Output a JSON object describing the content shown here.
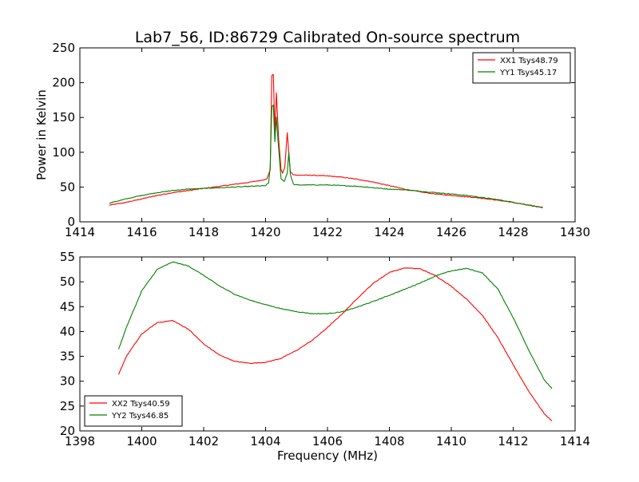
{
  "figure_title": "Lab7_56, ID:86729 Calibrated On-source spectrum",
  "colors": {
    "xx": "#ff0000",
    "yy": "#008000"
  },
  "chart_data": [
    {
      "type": "line",
      "title": "Lab7_56, ID:86729 Calibrated On-source spectrum",
      "xlabel": "",
      "ylabel": "Power in Kelvin",
      "xlim": [
        1414,
        1430
      ],
      "ylim": [
        0,
        250
      ],
      "xticks": [
        "1414",
        "1416",
        "1418",
        "1420",
        "1422",
        "1424",
        "1426",
        "1428",
        "1430"
      ],
      "yticks": [
        "0",
        "50",
        "100",
        "150",
        "200",
        "250"
      ],
      "grid": false,
      "legend_position": "top-right",
      "series": [
        {
          "name": "XX1 Tsys48.79",
          "color": "#ff0000",
          "x": [
            1414.95,
            1415.5,
            1416,
            1416.5,
            1417,
            1417.5,
            1418,
            1418.5,
            1419,
            1419.5,
            1419.9,
            1420.05,
            1420.15,
            1420.2,
            1420.25,
            1420.3,
            1420.35,
            1420.42,
            1420.5,
            1420.55,
            1420.62,
            1420.7,
            1420.75,
            1420.8,
            1420.9,
            1421,
            1421.5,
            1422,
            1422.5,
            1423,
            1423.5,
            1424,
            1424.5,
            1425,
            1425.5,
            1426,
            1426.5,
            1427,
            1427.5,
            1428,
            1428.5,
            1428.95
          ],
          "y": [
            24,
            28,
            33,
            38,
            42,
            45,
            48,
            51,
            54,
            57,
            60,
            62,
            75,
            210,
            212,
            130,
            185,
            120,
            75,
            70,
            78,
            128,
            100,
            72,
            68,
            67,
            67,
            66,
            64,
            61,
            57,
            52,
            47,
            43,
            40,
            38,
            36,
            34,
            31,
            28,
            24,
            21
          ]
        },
        {
          "name": "YY1 Tsys45.17",
          "color": "#008000",
          "x": [
            1414.95,
            1415.5,
            1416,
            1416.5,
            1417,
            1417.5,
            1418,
            1418.5,
            1419,
            1419.5,
            1420,
            1420.1,
            1420.15,
            1420.2,
            1420.25,
            1420.3,
            1420.35,
            1420.4,
            1420.5,
            1420.6,
            1420.7,
            1420.75,
            1420.8,
            1420.9,
            1421,
            1421.5,
            1422,
            1422.5,
            1423,
            1423.5,
            1424,
            1424.5,
            1425,
            1425.5,
            1426,
            1426.5,
            1427,
            1427.5,
            1428,
            1428.5,
            1428.95
          ],
          "y": [
            27,
            33,
            38,
            42,
            45,
            47,
            48,
            49,
            50,
            51,
            52,
            56,
            80,
            165,
            168,
            115,
            150,
            118,
            62,
            58,
            70,
            100,
            68,
            54,
            53,
            53,
            53,
            52,
            51,
            49,
            47,
            46,
            44,
            42,
            40,
            38,
            35,
            32,
            28,
            24,
            20
          ]
        }
      ]
    },
    {
      "type": "line",
      "title": "",
      "xlabel": "Frequency (MHz)",
      "ylabel": "",
      "xlim": [
        1398,
        1414
      ],
      "ylim": [
        20,
        55
      ],
      "xticks": [
        "1398",
        "1400",
        "1402",
        "1404",
        "1406",
        "1408",
        "1410",
        "1412",
        "1414"
      ],
      "yticks": [
        "20",
        "25",
        "30",
        "35",
        "40",
        "45",
        "50",
        "55"
      ],
      "grid": false,
      "legend_position": "bottom-left",
      "series": [
        {
          "name": "XX2 Tsys40.59",
          "color": "#ff0000",
          "x": [
            1399.25,
            1399.5,
            1400,
            1400.5,
            1401,
            1401.5,
            1402,
            1402.5,
            1403,
            1403.5,
            1404,
            1404.5,
            1405,
            1405.5,
            1406,
            1406.5,
            1407,
            1407.5,
            1408,
            1408.5,
            1409,
            1409.5,
            1410,
            1410.5,
            1411,
            1411.5,
            1412,
            1412.5,
            1413,
            1413.25
          ],
          "y": [
            31.3,
            35,
            39.5,
            41.8,
            42.2,
            40.5,
            37.5,
            35.3,
            34,
            33.6,
            33.8,
            34.6,
            36.2,
            38.2,
            40.8,
            43.7,
            46.9,
            49.8,
            51.9,
            52.8,
            52.6,
            51.2,
            49.1,
            46.5,
            43.3,
            38.8,
            33.3,
            28,
            23.5,
            22
          ]
        },
        {
          "name": "YY2 Tsys46.85",
          "color": "#008000",
          "x": [
            1399.25,
            1399.5,
            1400,
            1400.5,
            1401,
            1401.5,
            1402,
            1402.5,
            1403,
            1403.5,
            1404,
            1404.5,
            1405,
            1405.5,
            1406,
            1406.5,
            1407,
            1407.5,
            1408,
            1408.5,
            1409,
            1409.5,
            1410,
            1410.5,
            1411,
            1411.5,
            1412,
            1412.5,
            1413,
            1413.25
          ],
          "y": [
            36.4,
            40.8,
            48.2,
            52.5,
            54,
            53.2,
            51.3,
            49.2,
            47.5,
            46.3,
            45.4,
            44.6,
            44,
            43.6,
            43.6,
            44,
            45,
            46.1,
            47.3,
            48.5,
            49.8,
            51.2,
            52.2,
            52.7,
            51.8,
            48.6,
            42.8,
            36.3,
            30.3,
            28.5
          ]
        }
      ]
    }
  ]
}
